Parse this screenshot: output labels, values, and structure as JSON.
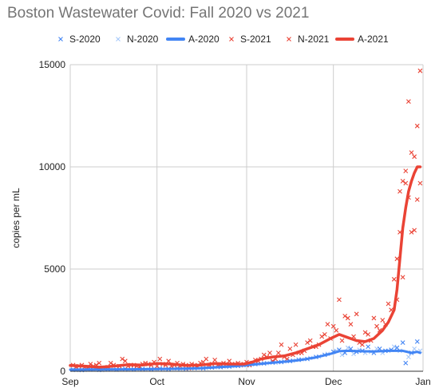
{
  "chart_data": {
    "type": "line",
    "title": "Boston Wastewater Covid: Fall 2020 vs 2021",
    "xlabel": "",
    "ylabel": "copies per mL",
    "x_range": [
      "Sep 1",
      "Jan 1"
    ],
    "xticks": [
      {
        "label": "Sep",
        "day": 0
      },
      {
        "label": "Oct",
        "day": 30
      },
      {
        "label": "Nov",
        "day": 61
      },
      {
        "label": "Dec",
        "day": 91
      },
      {
        "label": "Jan",
        "day": 122
      }
    ],
    "ylim": [
      0,
      15000
    ],
    "yticks": [
      0,
      5000,
      10000,
      15000
    ],
    "grid": true,
    "legend_position": "top",
    "series": [
      {
        "name": "S-2020",
        "kind": "scatter",
        "color": "#4285f4",
        "points": [
          [
            1,
            80
          ],
          [
            4,
            60
          ],
          [
            7,
            90
          ],
          [
            10,
            70
          ],
          [
            13,
            100
          ],
          [
            16,
            80
          ],
          [
            19,
            120
          ],
          [
            22,
            90
          ],
          [
            25,
            110
          ],
          [
            28,
            100
          ],
          [
            31,
            130
          ],
          [
            34,
            110
          ],
          [
            37,
            140
          ],
          [
            40,
            120
          ],
          [
            43,
            150
          ],
          [
            46,
            140
          ],
          [
            49,
            180
          ],
          [
            52,
            200
          ],
          [
            55,
            230
          ],
          [
            58,
            260
          ],
          [
            61,
            300
          ],
          [
            64,
            350
          ],
          [
            67,
            380
          ],
          [
            70,
            430
          ],
          [
            73,
            450
          ],
          [
            76,
            500
          ],
          [
            79,
            560
          ],
          [
            82,
            600
          ],
          [
            85,
            700
          ],
          [
            88,
            800
          ],
          [
            91,
            950
          ],
          [
            93,
            1050
          ],
          [
            95,
            900
          ],
          [
            97,
            1100
          ],
          [
            99,
            950
          ],
          [
            101,
            1000
          ],
          [
            103,
            1200
          ],
          [
            105,
            900
          ],
          [
            107,
            1100
          ],
          [
            109,
            1000
          ],
          [
            111,
            1050
          ],
          [
            113,
            1150
          ],
          [
            115,
            1400
          ],
          [
            116,
            400
          ],
          [
            118,
            900
          ],
          [
            120,
            1450
          ]
        ]
      },
      {
        "name": "N-2020",
        "kind": "scatter",
        "color": "#a6c8fa",
        "points": [
          [
            2,
            60
          ],
          [
            5,
            70
          ],
          [
            8,
            80
          ],
          [
            11,
            60
          ],
          [
            14,
            90
          ],
          [
            17,
            100
          ],
          [
            20,
            80
          ],
          [
            23,
            110
          ],
          [
            26,
            90
          ],
          [
            29,
            120
          ],
          [
            32,
            100
          ],
          [
            35,
            130
          ],
          [
            38,
            110
          ],
          [
            41,
            140
          ],
          [
            44,
            160
          ],
          [
            47,
            150
          ],
          [
            50,
            190
          ],
          [
            53,
            220
          ],
          [
            56,
            250
          ],
          [
            59,
            280
          ],
          [
            62,
            320
          ],
          [
            65,
            360
          ],
          [
            68,
            400
          ],
          [
            71,
            420
          ],
          [
            74,
            480
          ],
          [
            77,
            520
          ],
          [
            80,
            580
          ],
          [
            83,
            650
          ],
          [
            86,
            720
          ],
          [
            89,
            850
          ],
          [
            92,
            1000
          ],
          [
            94,
            800
          ],
          [
            96,
            1150
          ],
          [
            98,
            850
          ],
          [
            100,
            1050
          ],
          [
            102,
            900
          ],
          [
            104,
            950
          ],
          [
            106,
            1100
          ],
          [
            108,
            900
          ],
          [
            110,
            1000
          ],
          [
            112,
            1200
          ],
          [
            114,
            1000
          ],
          [
            117,
            700
          ],
          [
            119,
            1100
          ],
          [
            121,
            1000
          ]
        ]
      },
      {
        "name": "A-2020",
        "kind": "line",
        "color": "#4285f4",
        "points": [
          [
            0,
            80
          ],
          [
            10,
            85
          ],
          [
            20,
            95
          ],
          [
            30,
            110
          ],
          [
            40,
            130
          ],
          [
            45,
            150
          ],
          [
            50,
            190
          ],
          [
            55,
            230
          ],
          [
            60,
            280
          ],
          [
            65,
            350
          ],
          [
            70,
            420
          ],
          [
            75,
            480
          ],
          [
            80,
            560
          ],
          [
            85,
            680
          ],
          [
            90,
            850
          ],
          [
            93,
            980
          ],
          [
            96,
            1000
          ],
          [
            100,
            980
          ],
          [
            105,
            970
          ],
          [
            110,
            1000
          ],
          [
            115,
            1000
          ],
          [
            118,
            900
          ],
          [
            120,
            950
          ],
          [
            121,
            900
          ]
        ]
      },
      {
        "name": "S-2021",
        "kind": "scatter",
        "color": "#ea4335",
        "points": [
          [
            1,
            300
          ],
          [
            3,
            250
          ],
          [
            5,
            200
          ],
          [
            7,
            350
          ],
          [
            9,
            300
          ],
          [
            12,
            150
          ],
          [
            14,
            400
          ],
          [
            17,
            250
          ],
          [
            19,
            500
          ],
          [
            21,
            300
          ],
          [
            23,
            250
          ],
          [
            25,
            350
          ],
          [
            27,
            350
          ],
          [
            29,
            450
          ],
          [
            31,
            600
          ],
          [
            33,
            300
          ],
          [
            35,
            250
          ],
          [
            37,
            400
          ],
          [
            39,
            350
          ],
          [
            41,
            150
          ],
          [
            43,
            300
          ],
          [
            45,
            400
          ],
          [
            47,
            600
          ],
          [
            49,
            350
          ],
          [
            51,
            300
          ],
          [
            53,
            400
          ],
          [
            55,
            500
          ],
          [
            57,
            350
          ],
          [
            59,
            300
          ],
          [
            61,
            450
          ],
          [
            63,
            400
          ],
          [
            65,
            500
          ],
          [
            67,
            800
          ],
          [
            69,
            900
          ],
          [
            71,
            600
          ],
          [
            73,
            1300
          ],
          [
            75,
            600
          ],
          [
            77,
            800
          ],
          [
            79,
            900
          ],
          [
            81,
            1000
          ],
          [
            83,
            1500
          ],
          [
            85,
            1200
          ],
          [
            87,
            1700
          ],
          [
            89,
            2300
          ],
          [
            91,
            2200
          ],
          [
            93,
            3500
          ],
          [
            95,
            2700
          ],
          [
            97,
            2300
          ],
          [
            99,
            2800
          ],
          [
            101,
            1300
          ],
          [
            103,
            1800
          ],
          [
            105,
            2600
          ],
          [
            107,
            2000
          ],
          [
            109,
            2300
          ],
          [
            111,
            3000
          ],
          [
            113,
            3500
          ],
          [
            114,
            6800
          ],
          [
            115,
            9300
          ],
          [
            116,
            9800
          ],
          [
            117,
            13200
          ],
          [
            118,
            6800
          ],
          [
            119,
            10500
          ],
          [
            120,
            12000
          ],
          [
            121,
            14700
          ]
        ]
      },
      {
        "name": "N-2021",
        "kind": "scatter",
        "color": "#ea4335",
        "points": [
          [
            2,
            200
          ],
          [
            4,
            300
          ],
          [
            6,
            150
          ],
          [
            8,
            250
          ],
          [
            10,
            400
          ],
          [
            13,
            200
          ],
          [
            15,
            300
          ],
          [
            18,
            600
          ],
          [
            20,
            250
          ],
          [
            22,
            300
          ],
          [
            24,
            200
          ],
          [
            26,
            400
          ],
          [
            28,
            300
          ],
          [
            30,
            250
          ],
          [
            32,
            350
          ],
          [
            34,
            500
          ],
          [
            36,
            300
          ],
          [
            38,
            250
          ],
          [
            40,
            300
          ],
          [
            42,
            350
          ],
          [
            44,
            200
          ],
          [
            46,
            450
          ],
          [
            48,
            300
          ],
          [
            50,
            550
          ],
          [
            52,
            250
          ],
          [
            54,
            350
          ],
          [
            56,
            300
          ],
          [
            58,
            400
          ],
          [
            60,
            350
          ],
          [
            62,
            300
          ],
          [
            64,
            550
          ],
          [
            66,
            600
          ],
          [
            68,
            700
          ],
          [
            70,
            500
          ],
          [
            72,
            900
          ],
          [
            74,
            700
          ],
          [
            76,
            1100
          ],
          [
            78,
            1300
          ],
          [
            80,
            900
          ],
          [
            82,
            1400
          ],
          [
            84,
            1200
          ],
          [
            86,
            1300
          ],
          [
            88,
            1800
          ],
          [
            90,
            1600
          ],
          [
            92,
            2000
          ],
          [
            94,
            1500
          ],
          [
            96,
            2600
          ],
          [
            98,
            1700
          ],
          [
            100,
            1400
          ],
          [
            102,
            1900
          ],
          [
            104,
            1500
          ],
          [
            106,
            2200
          ],
          [
            108,
            2500
          ],
          [
            110,
            3300
          ],
          [
            112,
            4500
          ],
          [
            113,
            5500
          ],
          [
            114,
            8800
          ],
          [
            115,
            4600
          ],
          [
            116,
            9200
          ],
          [
            117,
            8500
          ],
          [
            118,
            10700
          ],
          [
            119,
            6900
          ],
          [
            120,
            8400
          ],
          [
            121,
            9200
          ]
        ]
      },
      {
        "name": "A-2021",
        "kind": "line",
        "color": "#ea4335",
        "points": [
          [
            0,
            280
          ],
          [
            5,
            250
          ],
          [
            10,
            200
          ],
          [
            15,
            250
          ],
          [
            20,
            320
          ],
          [
            25,
            300
          ],
          [
            30,
            380
          ],
          [
            35,
            350
          ],
          [
            40,
            280
          ],
          [
            45,
            300
          ],
          [
            50,
            380
          ],
          [
            55,
            350
          ],
          [
            60,
            350
          ],
          [
            63,
            450
          ],
          [
            66,
            600
          ],
          [
            70,
            700
          ],
          [
            74,
            750
          ],
          [
            78,
            900
          ],
          [
            82,
            1100
          ],
          [
            86,
            1300
          ],
          [
            90,
            1600
          ],
          [
            93,
            1800
          ],
          [
            96,
            1650
          ],
          [
            99,
            1500
          ],
          [
            102,
            1450
          ],
          [
            105,
            1600
          ],
          [
            108,
            2000
          ],
          [
            110,
            2400
          ],
          [
            112,
            3000
          ],
          [
            113,
            4000
          ],
          [
            114,
            5500
          ],
          [
            115,
            7000
          ],
          [
            116,
            8000
          ],
          [
            117,
            8800
          ],
          [
            118,
            9300
          ],
          [
            119,
            9700
          ],
          [
            120,
            10000
          ],
          [
            121,
            10000
          ]
        ]
      }
    ]
  }
}
